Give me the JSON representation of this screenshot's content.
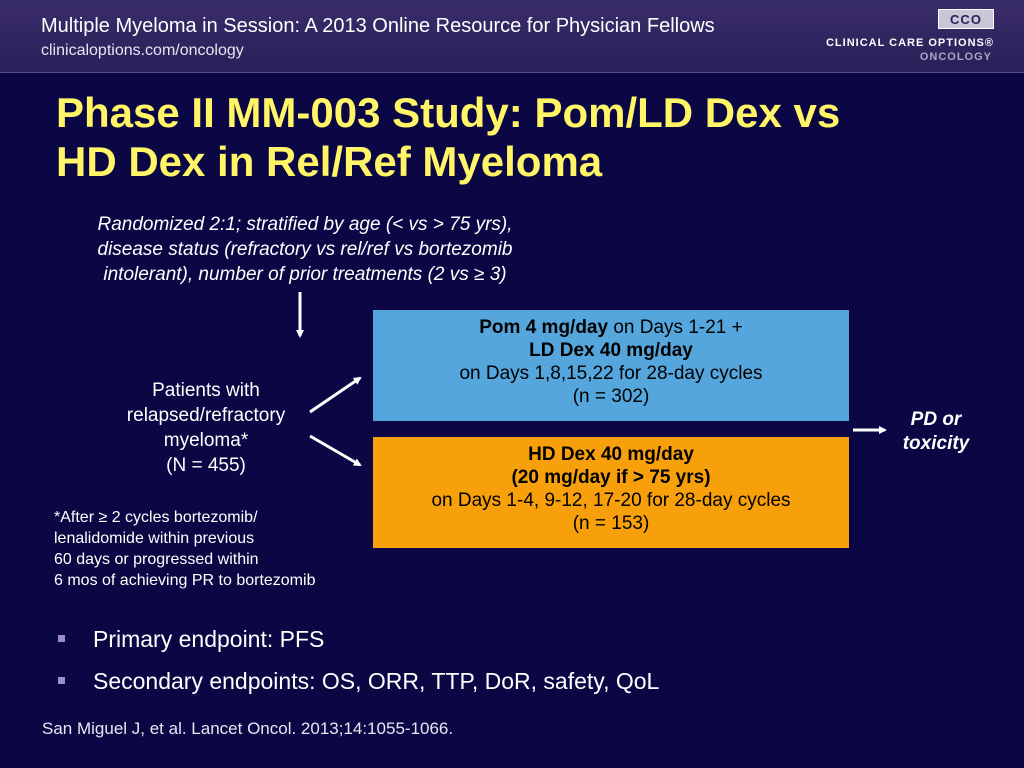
{
  "header": {
    "title": "Multiple Myeloma in Session: A 2013 Online Resource for Physician Fellows",
    "url": "clinicaloptions.com/oncology",
    "logo_mark": "CCO",
    "logo_text": "CLINICAL CARE OPTIONS®",
    "logo_sub": "ONCOLOGY"
  },
  "slide": {
    "title_line1": "Phase II MM-003 Study: Pom/LD Dex vs",
    "title_line2": "HD Dex in Rel/Ref Myeloma"
  },
  "randomization": {
    "line1": "Randomized 2:1; stratified by age (< vs > 75 yrs),",
    "line2": "disease status (refractory vs rel/ref vs bortezomib",
    "line3": "intolerant), number of prior treatments (2 vs ≥ 3)"
  },
  "patients": {
    "line1": "Patients with",
    "line2": "relapsed/refractory",
    "line3": "myeloma*",
    "line4": "(N = 455)"
  },
  "footnote": {
    "line1": "*After ≥ 2 cycles bortezomib/",
    "line2": "lenalidomide within previous",
    "line3": "60 days or progressed within",
    "line4": "6 mos of achieving PR to bortezomib"
  },
  "arms": {
    "pom": {
      "line1_bold": "Pom 4 mg/day",
      "line1_rest": " on Days 1-21 +",
      "line2": "LD Dex 40 mg/day",
      "line3": "on Days 1,8,15,22 for 28-day cycles",
      "line4": "(n = 302)",
      "color": "#55a6dd"
    },
    "dex": {
      "line1": "HD Dex 40 mg/day",
      "line2": "(20 mg/day if > 75 yrs)",
      "line3": "on Days 1-4, 9-12, 17-20 for 28-day cycles",
      "line4": "(n = 153)",
      "color": "#f7a00b"
    }
  },
  "outcome": {
    "line1": "PD or",
    "line2": "toxicity"
  },
  "endpoints": [
    "Primary endpoint: PFS",
    "Secondary endpoints: OS, ORR, TTP, DoR, safety, QoL"
  ],
  "citation": "San Miguel J, et al. Lancet Oncol. 2013;14:1055-1066.",
  "colors": {
    "background": "#0a0744",
    "title": "#fff566"
  }
}
